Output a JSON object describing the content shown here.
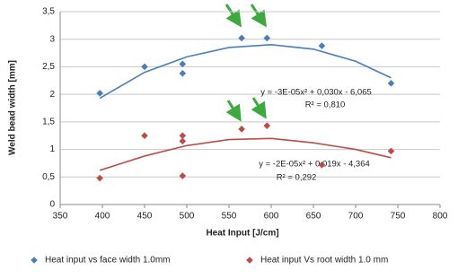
{
  "chart_data": {
    "type": "scatter",
    "xlabel": "Heat Input [J/cm]",
    "ylabel": "Weld bead width [mm]",
    "xlim": [
      350,
      800
    ],
    "xticks": [
      350,
      400,
      450,
      500,
      550,
      600,
      650,
      700,
      750,
      800
    ],
    "ylim": [
      0,
      3.5
    ],
    "yticks": [
      0,
      {
        "value": 0.5,
        "label": "0,5"
      },
      1,
      {
        "value": 1.5,
        "label": "1,5"
      },
      2,
      {
        "value": 2.5,
        "label": "2,5"
      },
      3,
      {
        "value": 3.5,
        "label": "3,5"
      }
    ],
    "grid": true,
    "legend": "bottom",
    "series": [
      {
        "name": "Heat input vs face width 1.0mm",
        "color": "#4a7ebb",
        "x": [
          397,
          450,
          495,
          495,
          565,
          595,
          660,
          742
        ],
        "values": [
          2.02,
          2.5,
          2.55,
          2.38,
          3.02,
          3.02,
          2.88,
          2.2
        ]
      },
      {
        "name": "Heat input Vs root width 1.0 mm",
        "color": "#be4b48",
        "x": [
          397,
          450,
          495,
          495,
          495,
          565,
          595,
          660,
          742
        ],
        "values": [
          0.48,
          1.25,
          1.25,
          1.15,
          0.52,
          1.37,
          1.43,
          0.72,
          0.97
        ]
      }
    ],
    "trendlines": [
      {
        "color": "#4a7ebb",
        "equation": "y = -3E-05x² + 0,030x - 6,065",
        "r2": "R² = 0,810",
        "x": [
          397,
          450,
          500,
          550,
          600,
          650,
          700,
          742
        ],
        "values": [
          1.93,
          2.4,
          2.68,
          2.85,
          2.9,
          2.82,
          2.6,
          2.3
        ]
      },
      {
        "color": "#be4b48",
        "equation": "y = -2E-05x² + 0,019x - 4,364",
        "r2": "R² = 0,292",
        "x": [
          397,
          450,
          500,
          550,
          600,
          650,
          700,
          742
        ],
        "values": [
          0.62,
          0.88,
          1.07,
          1.18,
          1.2,
          1.12,
          1.0,
          0.85
        ]
      }
    ]
  }
}
